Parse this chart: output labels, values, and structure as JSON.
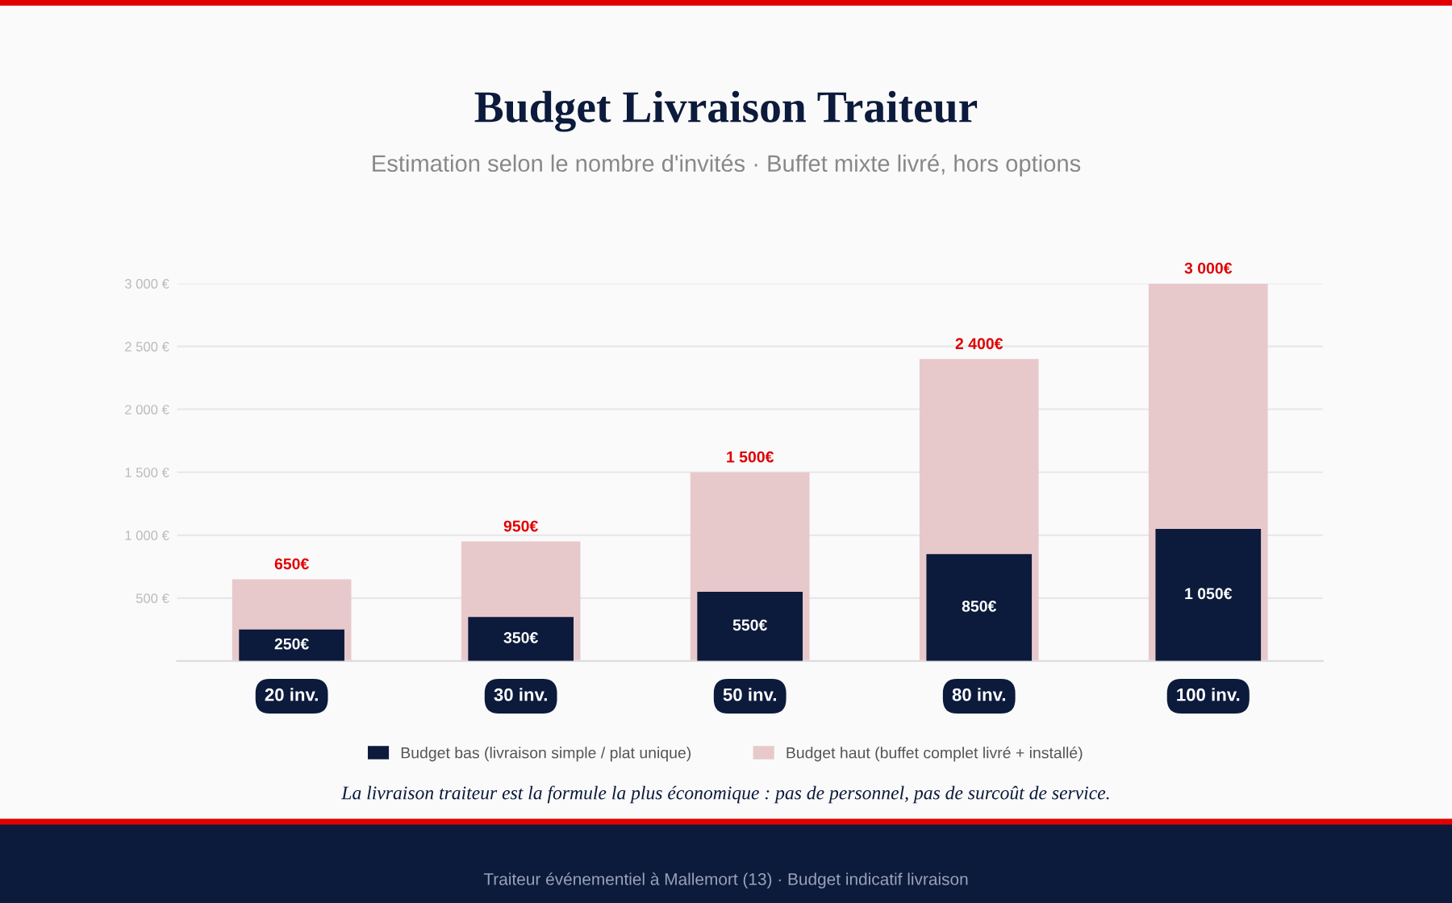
{
  "chart_data": {
    "type": "bar",
    "title": "Budget Livraison Traiteur",
    "subtitle": "Estimation selon le nombre d'invités · Buffet mixte livré, hors options",
    "categories": [
      "20 inv.",
      "30 inv.",
      "50 inv.",
      "80 inv.",
      "100 inv."
    ],
    "series": [
      {
        "name": "Budget haut (buffet complet livré + installé)",
        "color": "#e8c9cb",
        "values": [
          650,
          950,
          1500,
          2400,
          3000
        ],
        "value_labels": [
          "650€",
          "950€",
          "1 500€",
          "2 400€",
          "3 000€"
        ]
      },
      {
        "name": "Budget bas (livraison simple / plat unique)",
        "color": "#0c1a3c",
        "values": [
          250,
          350,
          550,
          850,
          1050
        ],
        "value_labels": [
          "250€",
          "350€",
          "550€",
          "850€",
          "1 050€"
        ]
      }
    ],
    "ylim": [
      0,
      3000
    ],
    "yticks": [
      {
        "value": 500,
        "label": "500 €"
      },
      {
        "value": 1000,
        "label": "1 000 €"
      },
      {
        "value": 1500,
        "label": "1 500 €"
      },
      {
        "value": 2000,
        "label": "2 000 €"
      },
      {
        "value": 2500,
        "label": "2 500 €"
      },
      {
        "value": 3000,
        "label": "3 000 €"
      }
    ],
    "grid": "y",
    "legend": "bottom",
    "annotations": [
      "La livraison traiteur est la formule la plus économique : pas de personnel, pas de surcoût de service.",
      "Traiteur événementiel à Mallemort (13) · Budget indicatif livraison"
    ]
  }
}
